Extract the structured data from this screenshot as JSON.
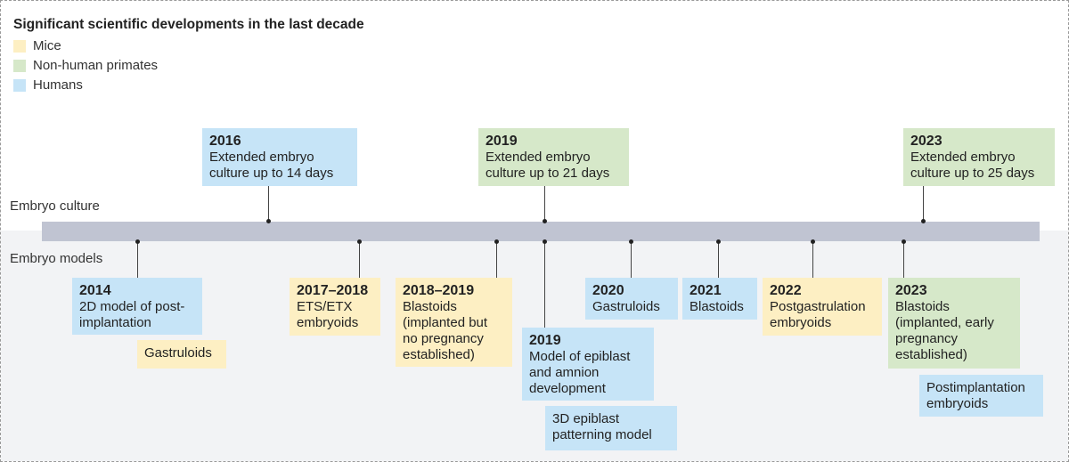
{
  "title": "Significant scientific developments in the last decade",
  "legend": [
    {
      "label": "Mice",
      "color": "#fdefc3"
    },
    {
      "label": "Non-human primates",
      "color": "#d6e8c9"
    },
    {
      "label": "Humans",
      "color": "#c6e4f7"
    }
  ],
  "tracks": [
    "Embryo culture",
    "Embryo models"
  ],
  "events": [
    {
      "year": "2016",
      "lines": [
        "Extended embryo",
        "culture up to 14 days"
      ],
      "color": "#c6e4f7"
    },
    {
      "year": "2019",
      "lines": [
        "Extended embryo",
        "culture up to 21 days"
      ],
      "color": "#d6e8c9"
    },
    {
      "year": "2023",
      "lines": [
        "Extended embryo",
        "culture up to 25 days"
      ],
      "color": "#d6e8c9"
    },
    {
      "year": "2014",
      "lines": [
        "2D model of post-",
        "implantation"
      ],
      "color": "#c6e4f7"
    },
    {
      "lines": [
        "Gastruloids"
      ],
      "color": "#fdefc3"
    },
    {
      "year": "2017–2018",
      "lines": [
        "ETS/ETX",
        "embryoids"
      ],
      "color": "#fdefc3"
    },
    {
      "year": "2018–2019",
      "lines": [
        "Blastoids",
        "(implanted but",
        "no pregnancy",
        "established)"
      ],
      "color": "#fdefc3"
    },
    {
      "year": "2019",
      "lines": [
        "Model of epiblast",
        "and amnion",
        "development"
      ],
      "color": "#c6e4f7"
    },
    {
      "lines": [
        "3D epiblast",
        "patterning model"
      ],
      "color": "#c6e4f7"
    },
    {
      "year": "2020",
      "lines": [
        "Gastruloids"
      ],
      "color": "#c6e4f7"
    },
    {
      "year": "2021",
      "lines": [
        "Blastoids"
      ],
      "color": "#c6e4f7"
    },
    {
      "year": "2022",
      "lines": [
        "Postgastrulation",
        "embryoids"
      ],
      "color": "#fdefc3"
    },
    {
      "year": "2023",
      "lines": [
        "Blastoids",
        "(implanted, early",
        "pregnancy",
        "established)"
      ],
      "color": "#d6e8c9"
    },
    {
      "lines": [
        "Postimplantation",
        "embryoids"
      ],
      "color": "#c6e4f7"
    }
  ]
}
